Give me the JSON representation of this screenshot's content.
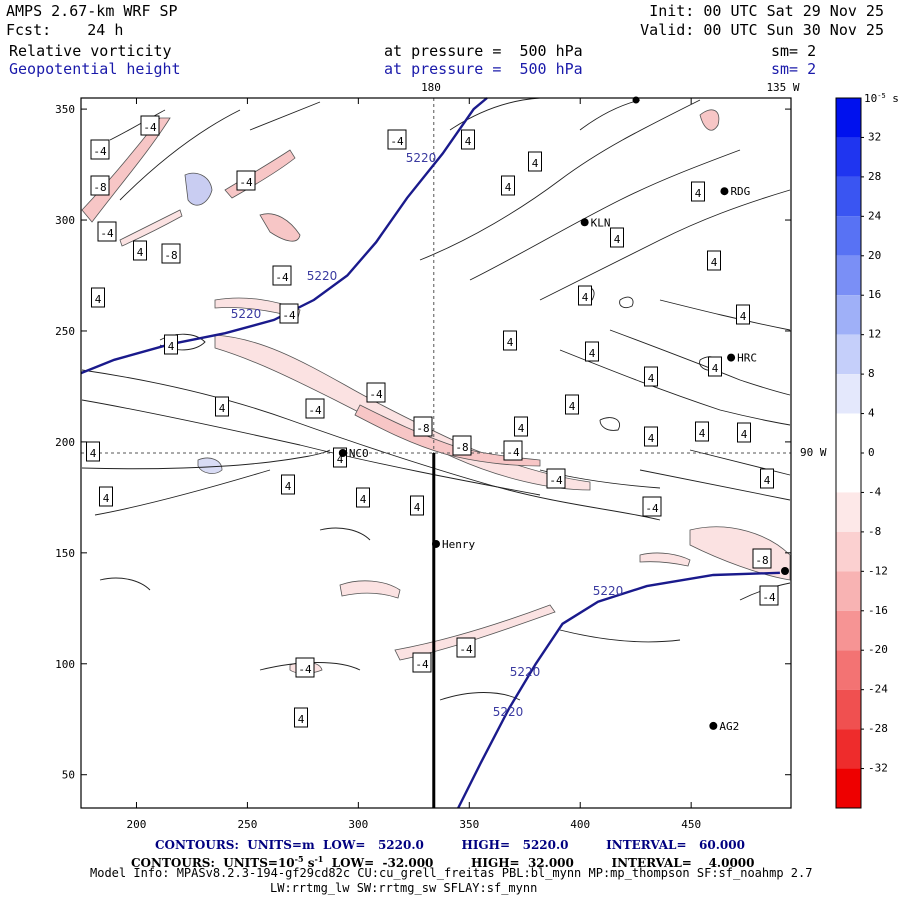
{
  "header": {
    "model": "AMPS 2.67-km WRF SP",
    "fcst_label": "Fcst:",
    "fcst_value": "24 h",
    "init": "Init: 00 UTC Sat 29 Nov 25",
    "valid": "Valid: 00 UTC Sun 30 Nov 25",
    "field1": "Relative vorticity",
    "field1_pressure": "at pressure =  500 hPa",
    "field1_sm": "sm= 2",
    "field2": "Geopotential height",
    "field2_pressure": "at pressure =  500 hPa",
    "field2_sm": "sm= 2"
  },
  "map": {
    "lon_labels": [
      "180",
      "135 W",
      "90 W"
    ],
    "stations": [
      "NCO",
      "KLN",
      "RDG",
      "HRC",
      "Henry",
      "AG2"
    ],
    "vorticity_labels": [
      "-4",
      "-8",
      "4"
    ],
    "height_contour_label": "5220"
  },
  "colorbar": {
    "unit": "10",
    "unit_exp": "-5",
    "unit_suffix": " s",
    "unit_suffix_exp": "-1",
    "ticks": [
      "32",
      "28",
      "24",
      "20",
      "16",
      "12",
      "8",
      "4",
      "0",
      "-4",
      "-8",
      "-12",
      "-16",
      "-20",
      "-24",
      "-28",
      "-32"
    ]
  },
  "footer": {
    "line1": "CONTOURS:  UNITS=m  LOW=   5220.0         HIGH=   5220.0         INTERVAL=   60.000",
    "line2a": "CONTOURS:  UNITS=10",
    "line2exp": "-5",
    "line2b": " s",
    "line2exp2": "-1",
    "line2c": "  LOW=  -32.000         HIGH=  32.000         INTERVAL=    4.0000",
    "line3": "Model Info: MPASv8.2.3-194-gf29cd82c CU:cu_grell_freitas PBL:bl_mynn MP:mp_thompson SF:sf_noahmp 2.7",
    "line4": "LW:rrtmg_lw SW:rrtmg_sw SFLAY:sf_mynn"
  },
  "chart_data": {
    "type": "contour",
    "title": "Relative vorticity / Geopotential height at pressure = 500 hPa",
    "xlim": [
      175,
      495
    ],
    "ylim": [
      35,
      355
    ],
    "x_ticks": [
      200,
      250,
      300,
      350,
      400,
      450
    ],
    "y_ticks": [
      50,
      100,
      150,
      200,
      250,
      300,
      350
    ],
    "colorbar_range": [
      -32,
      32
    ],
    "colorbar_interval": 4,
    "height_contour_value": 5220,
    "height_contour_paths": [
      [
        [
          175,
          231
        ],
        [
          190,
          237
        ],
        [
          215,
          244
        ],
        [
          240,
          249
        ],
        [
          262,
          255
        ],
        [
          280,
          264
        ],
        [
          295,
          275
        ],
        [
          308,
          290
        ],
        [
          322,
          310
        ],
        [
          338,
          330
        ],
        [
          352,
          350
        ],
        [
          358,
          355
        ]
      ],
      [
        [
          345,
          35
        ],
        [
          355,
          55
        ],
        [
          368,
          80
        ],
        [
          380,
          100
        ],
        [
          392,
          118
        ],
        [
          408,
          128
        ],
        [
          430,
          135
        ],
        [
          460,
          140
        ],
        [
          490,
          141
        ]
      ]
    ],
    "cross_section": {
      "x": 334,
      "y": [
        35,
        195
      ]
    },
    "stations": [
      {
        "name": "NCO",
        "x": 293,
        "y": 195
      },
      {
        "name": "KLN",
        "x": 402,
        "y": 299
      },
      {
        "name": "RDG",
        "x": 465,
        "y": 313
      },
      {
        "name": "HRC",
        "x": 468,
        "y": 238
      },
      {
        "name": "Henry",
        "x": 335,
        "y": 154
      },
      {
        "name": "AG2",
        "x": 460,
        "y": 72
      }
    ],
    "vorticity_negative_bands": [
      {
        "value": -8,
        "points": [
          [
            245,
            247
          ],
          [
            280,
            232
          ],
          [
            310,
            218
          ],
          [
            335,
            206
          ],
          [
            360,
            197
          ],
          [
            390,
            187
          ]
        ]
      },
      {
        "value": -4,
        "points": [
          [
            185,
            300
          ],
          [
            205,
            322
          ],
          [
            225,
            340
          ],
          [
            245,
            350
          ]
        ]
      }
    ]
  }
}
